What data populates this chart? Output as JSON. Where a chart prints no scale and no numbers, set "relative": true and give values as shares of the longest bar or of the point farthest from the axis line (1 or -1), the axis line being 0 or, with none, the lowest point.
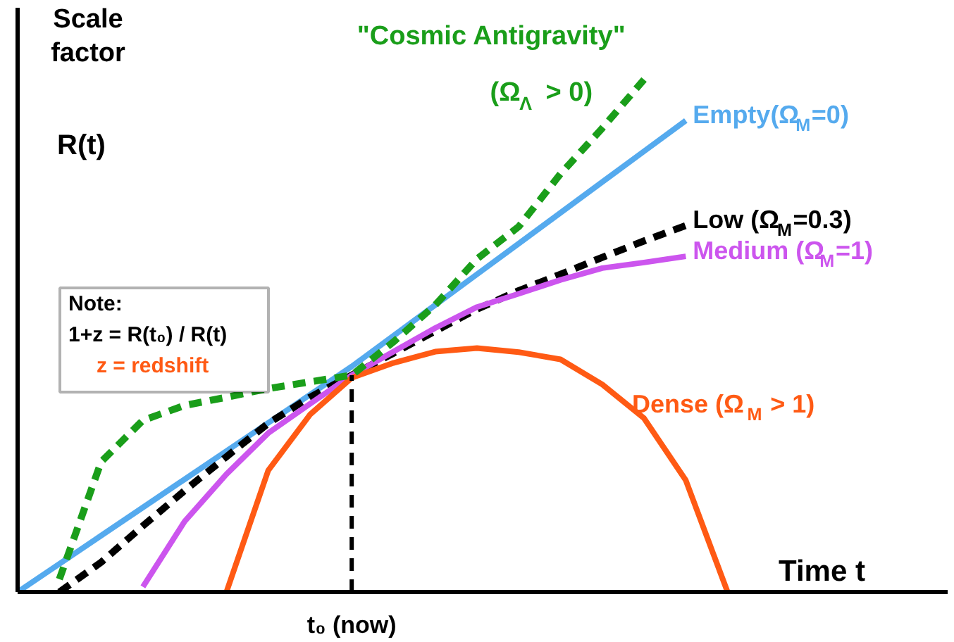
{
  "chart_data": {
    "type": "line",
    "relative": true,
    "title": "Scale factor",
    "ylabel": "R(t)",
    "xlabel": "Time  t",
    "tick_labels": false,
    "marker": "none",
    "categories": [
      null,
      null,
      null,
      null,
      null,
      null,
      null,
      null,
      null,
      null,
      null,
      null,
      null,
      null,
      null,
      null,
      null,
      null
    ],
    "ref_lines": [
      {
        "axis": "x",
        "label": "t₀ (now)",
        "color": "#000000",
        "line_style": "dashed"
      }
    ],
    "annotations": [
      "Note:",
      "1+z = R(t₀) / R(t)",
      "z = redshift"
    ],
    "series": [
      {
        "name": "Empty(Ω$_{M}$=0)",
        "color": "#55aaee",
        "line_style": "solid",
        "values": [
          0,
          0.055,
          0.11,
          0.165,
          0.22,
          0.275,
          0.33,
          0.385,
          0.44,
          0.5,
          0.56,
          0.62,
          0.68,
          0.74,
          0.8,
          0.86,
          0.92,
          null
        ]
      },
      {
        "name": "Low (Ω$_{M}$=0.3)",
        "color": "#000000",
        "line_style": "dashed",
        "values": [
          null,
          0,
          0.058,
          0.129,
          0.198,
          0.264,
          0.329,
          0.38,
          0.423,
          0.466,
          0.509,
          0.552,
          0.588,
          0.62,
          0.653,
          0.685,
          0.715,
          null
        ]
      },
      {
        "name": "Medium (Ω$_{M}$=1)",
        "color": "#cc55ee",
        "line_style": "solid",
        "values": [
          null,
          null,
          null,
          0.01,
          0.138,
          0.23,
          0.31,
          0.367,
          0.423,
          0.469,
          0.515,
          0.556,
          0.582,
          0.609,
          0.632,
          0.643,
          0.655,
          null
        ]
      },
      {
        "name": "Dense (Ω$_{M}$ > 1)",
        "color": "#ff5a14",
        "line_style": "solid",
        "values": [
          null,
          null,
          null,
          null,
          null,
          0,
          0.237,
          0.346,
          0.418,
          0.447,
          0.469,
          0.476,
          0.468,
          0.454,
          0.405,
          0.339,
          0.218,
          0
        ]
      },
      {
        "name": "\"Cosmic Antigravity\" (Ω$_{Λ}$ > 0)",
        "color": "#1a9e1a",
        "line_style": "dashed",
        "values": [
          null,
          0.025,
          0.254,
          0.335,
          0.364,
          0.38,
          0.397,
          0.41,
          0.423,
          0.488,
          0.56,
          0.65,
          0.713,
          0.816,
          0.905,
          1,
          null,
          null
        ]
      }
    ]
  }
}
